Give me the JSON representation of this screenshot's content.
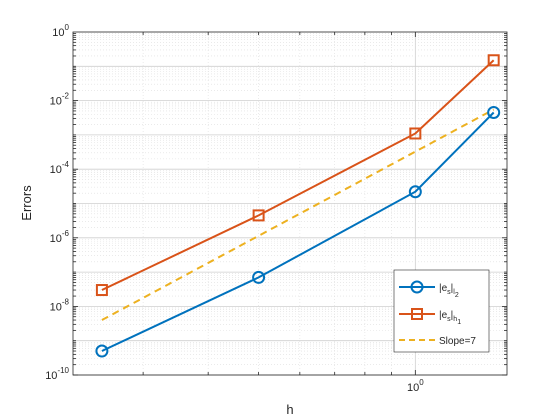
{
  "chart_data": {
    "type": "line",
    "xlabel": "h",
    "ylabel": "Errors",
    "xscale": "log",
    "yscale": "log",
    "xlim": [
      0.22,
      1.5
    ],
    "ylim": [
      1e-10,
      1
    ],
    "grid": true,
    "minor_grid": true,
    "x_ticks": [
      {
        "value": 1,
        "base": "10",
        "exp": "0"
      }
    ],
    "y_ticks": [
      {
        "value": 1,
        "base": "10",
        "exp": "0"
      },
      {
        "value": 0.01,
        "base": "10",
        "exp": "-2"
      },
      {
        "value": 0.0001,
        "base": "10",
        "exp": "-4"
      },
      {
        "value": 1e-06,
        "base": "10",
        "exp": "-6"
      },
      {
        "value": 1e-08,
        "base": "10",
        "exp": "-8"
      },
      {
        "value": 1e-10,
        "base": "10",
        "exp": "-10"
      }
    ],
    "legend_position": "bottom-right",
    "series": [
      {
        "name": "|e_s|_{l_2}",
        "legend_main": "|e",
        "legend_s": "s",
        "legend_bar": "|",
        "legend_sub": "l",
        "legend_subsub": "2",
        "color": "#0072BD",
        "marker": "circle",
        "style": "solid",
        "x": [
          0.25,
          0.5,
          1.0,
          1.4142
        ],
        "y": [
          5e-10,
          7e-08,
          2.2e-05,
          0.0045
        ]
      },
      {
        "name": "|e_s|_{h_1}",
        "legend_main": "|e",
        "legend_s": "s",
        "legend_bar": "|",
        "legend_sub": "h",
        "legend_subsub": "1",
        "color": "#D95319",
        "marker": "square",
        "style": "solid",
        "x": [
          0.25,
          0.5,
          1.0,
          1.4142
        ],
        "y": [
          3e-08,
          4.5e-06,
          0.0011,
          0.15
        ]
      },
      {
        "name": "Slope=7",
        "legend_text": "Slope=7",
        "color": "#EDB120",
        "marker": "none",
        "style": "dashed",
        "x": [
          0.25,
          1.4142
        ],
        "y": [
          4e-09,
          0.0055
        ]
      }
    ]
  }
}
